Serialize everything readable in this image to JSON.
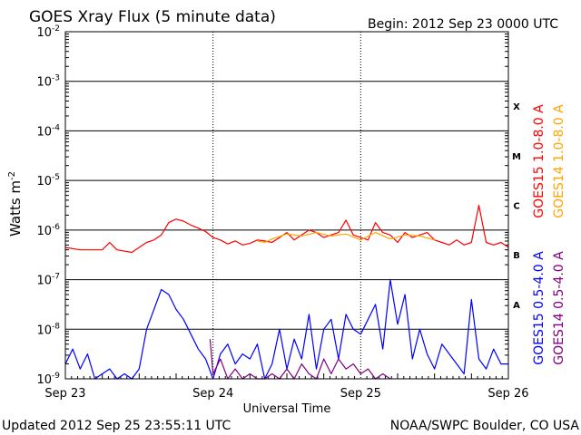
{
  "chart_data": {
    "type": "line",
    "title": "GOES Xray Flux (5 minute data)",
    "begin_label": "Begin:  2012 Sep 23 0000 UTC",
    "ylabel": "Watts m",
    "ylabel_sup": "-2",
    "xlabel": "Universal Time",
    "footer_left": "Updated 2012 Sep 25 23:55:11 UTC",
    "footer_right": "NOAA/SWPC Boulder, CO USA",
    "y_scale": "log",
    "ylim": [
      1e-09,
      0.01
    ],
    "xlim": [
      0,
      3
    ],
    "y_ticks": [
      {
        "base": "10",
        "exp": "-9",
        "value": -9
      },
      {
        "base": "10",
        "exp": "-8",
        "value": -8
      },
      {
        "base": "10",
        "exp": "-7",
        "value": -7
      },
      {
        "base": "10",
        "exp": "-6",
        "value": -6
      },
      {
        "base": "10",
        "exp": "-5",
        "value": -5
      },
      {
        "base": "10",
        "exp": "-4",
        "value": -4
      },
      {
        "base": "10",
        "exp": "-3",
        "value": -3
      },
      {
        "base": "10",
        "exp": "-2",
        "value": -2
      }
    ],
    "x_ticks": [
      {
        "label": "Sep 23",
        "value": 0
      },
      {
        "label": "Sep 24",
        "value": 1
      },
      {
        "label": "Sep 25",
        "value": 2
      },
      {
        "label": "Sep 26",
        "value": 3
      }
    ],
    "flare_classes": [
      {
        "label": "X",
        "log_low": -4
      },
      {
        "label": "M",
        "log_low": -5
      },
      {
        "label": "C",
        "log_low": -6
      },
      {
        "label": "B",
        "log_low": -7
      },
      {
        "label": "A",
        "log_low": -8
      }
    ],
    "series": [
      {
        "name": "GOES15 1.0-8.0 A",
        "color": "#ff0000",
        "x": [
          0,
          0.1,
          0.25,
          0.3,
          0.35,
          0.45,
          0.5,
          0.55,
          0.6,
          0.65,
          0.7,
          0.75,
          0.8,
          0.85,
          0.9,
          0.95,
          1.0,
          1.05,
          1.1,
          1.15,
          1.2,
          1.25,
          1.3,
          1.35,
          1.4,
          1.45,
          1.5,
          1.55,
          1.6,
          1.65,
          1.7,
          1.75,
          1.8,
          1.85,
          1.9,
          1.95,
          2.0,
          2.05,
          2.1,
          2.15,
          2.2,
          2.25,
          2.3,
          2.35,
          2.4,
          2.45,
          2.5,
          2.55,
          2.6,
          2.65,
          2.7,
          2.75,
          2.8,
          2.85,
          2.9,
          2.95,
          3.0
        ],
        "log_y": [
          -6.35,
          -6.4,
          -6.4,
          -6.25,
          -6.4,
          -6.45,
          -6.35,
          -6.25,
          -6.2,
          -6.1,
          -5.85,
          -5.78,
          -5.82,
          -5.9,
          -5.96,
          -6.03,
          -6.15,
          -6.2,
          -6.28,
          -6.22,
          -6.3,
          -6.27,
          -6.2,
          -6.22,
          -6.25,
          -6.15,
          -6.05,
          -6.2,
          -6.1,
          -6.0,
          -6.05,
          -6.15,
          -6.1,
          -6.05,
          -5.8,
          -6.1,
          -6.15,
          -6.2,
          -5.85,
          -6.05,
          -6.1,
          -6.25,
          -6.05,
          -6.15,
          -6.1,
          -6.05,
          -6.2,
          -6.25,
          -6.3,
          -6.2,
          -6.3,
          -6.25,
          -5.5,
          -6.25,
          -6.3,
          -6.25,
          -6.35
        ]
      },
      {
        "name": "GOES14 1.0-8.0 A",
        "color": "#ffa500",
        "x": [
          1.3,
          1.35,
          1.4,
          1.5,
          1.6,
          1.7,
          1.8,
          1.9,
          2.0,
          2.1,
          2.2,
          2.3,
          2.4,
          2.5
        ],
        "log_y": [
          -6.22,
          -6.25,
          -6.18,
          -6.08,
          -6.12,
          -6.05,
          -6.12,
          -6.08,
          -6.2,
          -6.05,
          -6.18,
          -6.1,
          -6.12,
          -6.2
        ]
      },
      {
        "name": "GOES15 0.5-4.0 A",
        "color": "#0000ff",
        "x": [
          0,
          0.05,
          0.1,
          0.15,
          0.2,
          0.25,
          0.3,
          0.35,
          0.4,
          0.45,
          0.5,
          0.55,
          0.6,
          0.65,
          0.7,
          0.75,
          0.8,
          0.85,
          0.9,
          0.95,
          1.0,
          1.05,
          1.1,
          1.15,
          1.2,
          1.25,
          1.3,
          1.35,
          1.4,
          1.45,
          1.5,
          1.55,
          1.6,
          1.65,
          1.7,
          1.75,
          1.8,
          1.85,
          1.9,
          1.95,
          2.0,
          2.05,
          2.1,
          2.15,
          2.2,
          2.25,
          2.3,
          2.35,
          2.4,
          2.45,
          2.5,
          2.55,
          2.6,
          2.65,
          2.7,
          2.75,
          2.8,
          2.85,
          2.9,
          2.95,
          3.0
        ],
        "log_y": [
          -8.7,
          -8.4,
          -8.8,
          -8.5,
          -9.0,
          -8.9,
          -8.8,
          -9.0,
          -8.9,
          -9.0,
          -8.8,
          -8.0,
          -7.6,
          -7.2,
          -7.3,
          -7.6,
          -7.8,
          -8.1,
          -8.4,
          -8.6,
          -9.0,
          -8.5,
          -8.3,
          -8.7,
          -8.5,
          -8.6,
          -8.3,
          -9.0,
          -8.7,
          -8.0,
          -8.8,
          -8.2,
          -8.6,
          -7.7,
          -8.8,
          -8.0,
          -7.8,
          -8.6,
          -7.7,
          -8.0,
          -8.1,
          -7.8,
          -7.5,
          -8.4,
          -7.0,
          -7.9,
          -7.3,
          -8.6,
          -8.0,
          -8.5,
          -8.8,
          -8.3,
          -8.5,
          -8.7,
          -8.9,
          -7.4,
          -8.6,
          -8.8,
          -8.4,
          -8.7,
          -8.7
        ]
      },
      {
        "name": "GOES14 0.5-4.0 A",
        "color": "#800080",
        "x": [
          0.98,
          1.0,
          1.05,
          1.1,
          1.15,
          1.2,
          1.25,
          1.3,
          1.35,
          1.4,
          1.45,
          1.5,
          1.55,
          1.6,
          1.65,
          1.7,
          1.75,
          1.8,
          1.85,
          1.9,
          1.95,
          2.0,
          2.05,
          2.1,
          2.15,
          2.2
        ],
        "log_y": [
          -8.2,
          -8.9,
          -8.6,
          -9.0,
          -8.8,
          -9.0,
          -8.9,
          -9.0,
          -9.0,
          -8.9,
          -9.0,
          -8.8,
          -9.0,
          -8.7,
          -8.9,
          -9.0,
          -8.6,
          -8.9,
          -8.6,
          -8.8,
          -8.7,
          -8.9,
          -8.8,
          -9.0,
          -8.9,
          -9.0
        ]
      }
    ]
  }
}
